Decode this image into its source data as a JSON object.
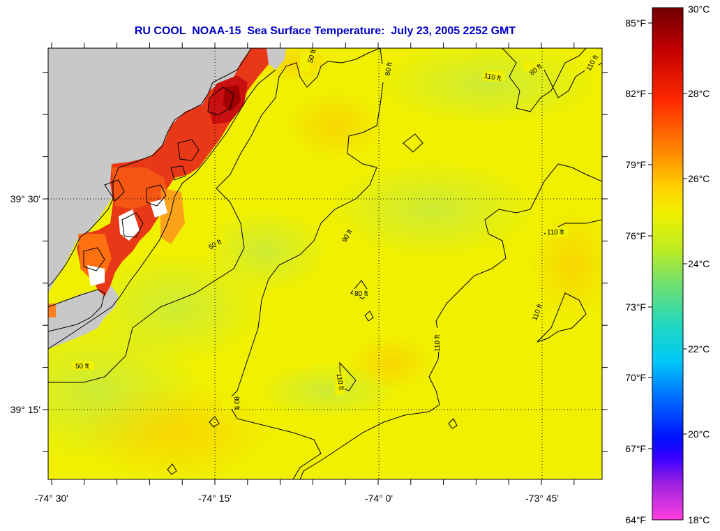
{
  "title": "RU COOL  NOAA-15  Sea Surface Temperature:  July 23, 2005 2252 GMT",
  "map": {
    "x_ticks": [
      "-74° 30'",
      "-74° 15'",
      "-74° 0'",
      "-73° 45'"
    ],
    "y_ticks": [
      "39° 30'",
      "39° 15'"
    ],
    "contour_labels": {
      "c50a": "50 ft",
      "c50b": "50 ft",
      "c50c": "50 ft",
      "c80a": "80 ft",
      "c80b": "80 ft",
      "c80c": "80 ft",
      "c80d": "80 ft",
      "c90a": "90 ft",
      "c110a": "110 ft",
      "c110b": "110 ft",
      "c110c": "110 ft",
      "c110d": "110 ft",
      "c110e": "110 ft",
      "c110f": "110 ft"
    },
    "colors": {
      "land": "#c8c8c8",
      "ocean": "#e8f00a",
      "warm_coast": "#e8321a",
      "contour": "#000000"
    }
  },
  "colorbar": {
    "fahrenheit_labels": [
      "85°F",
      "82°F",
      "79°F",
      "76°F",
      "73°F",
      "70°F",
      "67°F",
      "64°F"
    ],
    "celsius_labels": [
      "30°C",
      "28°C",
      "26°C",
      "24°C",
      "22°C",
      "20°C",
      "18°C"
    ],
    "gradient": [
      "#780000",
      "#d00000",
      "#ff3000",
      "#ff9000",
      "#ffe000",
      "#d8f010",
      "#80e040",
      "#30d8a0",
      "#00e0f0",
      "#0080ff",
      "#0000ff",
      "#8000c0",
      "#ff40e0"
    ]
  }
}
